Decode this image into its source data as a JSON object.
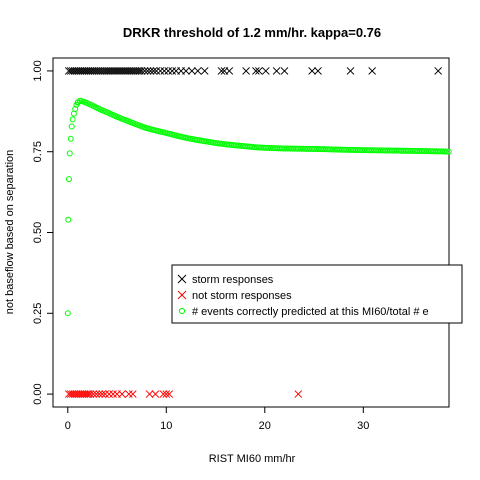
{
  "chart_data": {
    "type": "scatter",
    "title": "DRKR threshold of 1.2 mm/hr. kappa=0.76",
    "xlabel": "RIST MI60 mm/hr",
    "ylabel": "not baseflow based on separation",
    "xlim": [
      -1.5,
      38.7
    ],
    "ylim": [
      -0.04,
      1.04
    ],
    "x_ticks": [
      "0",
      "10",
      "20",
      "30"
    ],
    "x_tick_values": [
      0,
      10,
      20,
      30
    ],
    "y_ticks": [
      "0.00",
      "0.25",
      "0.50",
      "0.75",
      "1.00"
    ],
    "y_tick_values": [
      0,
      0.25,
      0.5,
      0.75,
      1.0
    ],
    "grid": false,
    "legend_position": "center-right",
    "series": [
      {
        "name": "storm responses",
        "marker": "x",
        "color": "#000000",
        "x": [
          0.1,
          0.3,
          0.5,
          0.7,
          0.9,
          1.1,
          1.3,
          1.5,
          1.7,
          1.9,
          2.1,
          2.3,
          2.5,
          2.7,
          2.9,
          3.1,
          3.3,
          3.5,
          3.7,
          3.9,
          4.1,
          4.3,
          4.5,
          4.7,
          4.9,
          5.1,
          5.3,
          5.5,
          5.7,
          5.9,
          6.1,
          6.3,
          6.5,
          6.7,
          6.9,
          7.1,
          7.3,
          7.5,
          7.8,
          8.1,
          8.4,
          8.7,
          9.0,
          9.4,
          9.8,
          10.2,
          10.6,
          11.0,
          11.5,
          12.0,
          12.6,
          13.2,
          13.9,
          15.6,
          15.9,
          16.4,
          18.1,
          19.1,
          19.4,
          20.1,
          21.2,
          22.0,
          24.8,
          25.4,
          28.7,
          30.9,
          37.6
        ],
        "y_value": 1.0
      },
      {
        "name": "not storm responses",
        "marker": "x",
        "color": "#ff0000",
        "x": [
          0.1,
          0.3,
          0.5,
          0.7,
          0.9,
          1.1,
          1.3,
          1.5,
          1.7,
          1.9,
          2.1,
          2.3,
          2.6,
          2.9,
          3.2,
          3.5,
          3.8,
          4.2,
          4.6,
          5.0,
          5.5,
          6.2,
          6.6,
          8.3,
          8.9,
          9.7,
          10.0,
          10.3,
          23.4
        ],
        "y_value": 0.0
      },
      {
        "name": "# events correctly predicted at this MI60/total # e",
        "marker": "circle",
        "color": "#00ff00",
        "curve_x": [
          0.0,
          0.05,
          0.12,
          0.2,
          0.3,
          0.4,
          0.5,
          0.62,
          0.75,
          0.88,
          1.0,
          1.2,
          1.5,
          2.0,
          2.5,
          3.0,
          3.5,
          4.0,
          4.5,
          5.0,
          6.0,
          7.0,
          8.0,
          9.0,
          10.0,
          11.0,
          12.0,
          13.0,
          14.0,
          15.0,
          16.0,
          17.0,
          18.0,
          19.0,
          20.0,
          22.0,
          24.0,
          26.0,
          28.0,
          30.0,
          32.0,
          34.0,
          36.0,
          38.0,
          38.7
        ],
        "curve_y": [
          0.25,
          0.54,
          0.665,
          0.745,
          0.79,
          0.828,
          0.85,
          0.868,
          0.882,
          0.895,
          0.902,
          0.908,
          0.906,
          0.9,
          0.893,
          0.885,
          0.878,
          0.872,
          0.865,
          0.858,
          0.846,
          0.834,
          0.823,
          0.815,
          0.808,
          0.8,
          0.793,
          0.787,
          0.782,
          0.777,
          0.773,
          0.77,
          0.767,
          0.764,
          0.762,
          0.76,
          0.759,
          0.758,
          0.756,
          0.755,
          0.754,
          0.753,
          0.752,
          0.751,
          0.75
        ]
      }
    ]
  }
}
